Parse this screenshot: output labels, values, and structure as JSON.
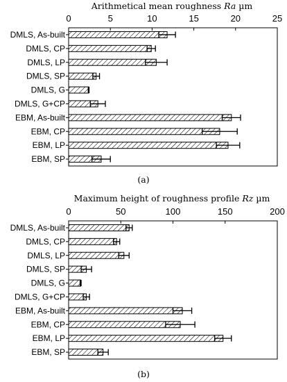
{
  "chart_data": [
    {
      "type": "bar",
      "orientation": "horizontal",
      "title_main": "Arithmetical mean roughness ",
      "title_symbol": "Ra",
      "title_unit": " µm",
      "sublabel": "(a)",
      "xlim": [
        0,
        25
      ],
      "ticks": [
        0,
        5,
        10,
        15,
        20,
        25
      ],
      "categories": [
        "DMLS, As-built",
        "DMLS, CP",
        "DMLS, LP",
        "DMLS, SP",
        "DMLS, G",
        "DMLS, G+CP",
        "EBM, As-built",
        "EBM, CP",
        "EBM, LP",
        "EBM, SP"
      ],
      "values": [
        11.8,
        9.9,
        10.5,
        3.3,
        2.4,
        3.5,
        19.5,
        18.1,
        19.1,
        3.9
      ],
      "errors": [
        1.0,
        0.5,
        1.3,
        0.4,
        0.05,
        0.9,
        1.1,
        2.1,
        1.4,
        1.1
      ],
      "grid": false,
      "legend": "none"
    },
    {
      "type": "bar",
      "orientation": "horizontal",
      "title_main": "Maximum height of roughness profile ",
      "title_symbol": "Rz",
      "title_unit": " µm",
      "sublabel": "(b)",
      "xlim": [
        0,
        200
      ],
      "ticks": [
        0,
        50,
        100,
        150,
        200
      ],
      "categories": [
        "DMLS, As-built",
        "DMLS, CP",
        "DMLS, LP",
        "DMLS, SP",
        "DMLS, G",
        "DMLS, G+CP",
        "EBM, As-built",
        "EBM, CP",
        "EBM, LP",
        "EBM, SP"
      ],
      "values": [
        58,
        46,
        53,
        17,
        11.5,
        17,
        109,
        107,
        148,
        33
      ],
      "errors": [
        3,
        3,
        5,
        5,
        0.5,
        3,
        9,
        14,
        8,
        5
      ],
      "grid": false,
      "legend": "none"
    }
  ]
}
